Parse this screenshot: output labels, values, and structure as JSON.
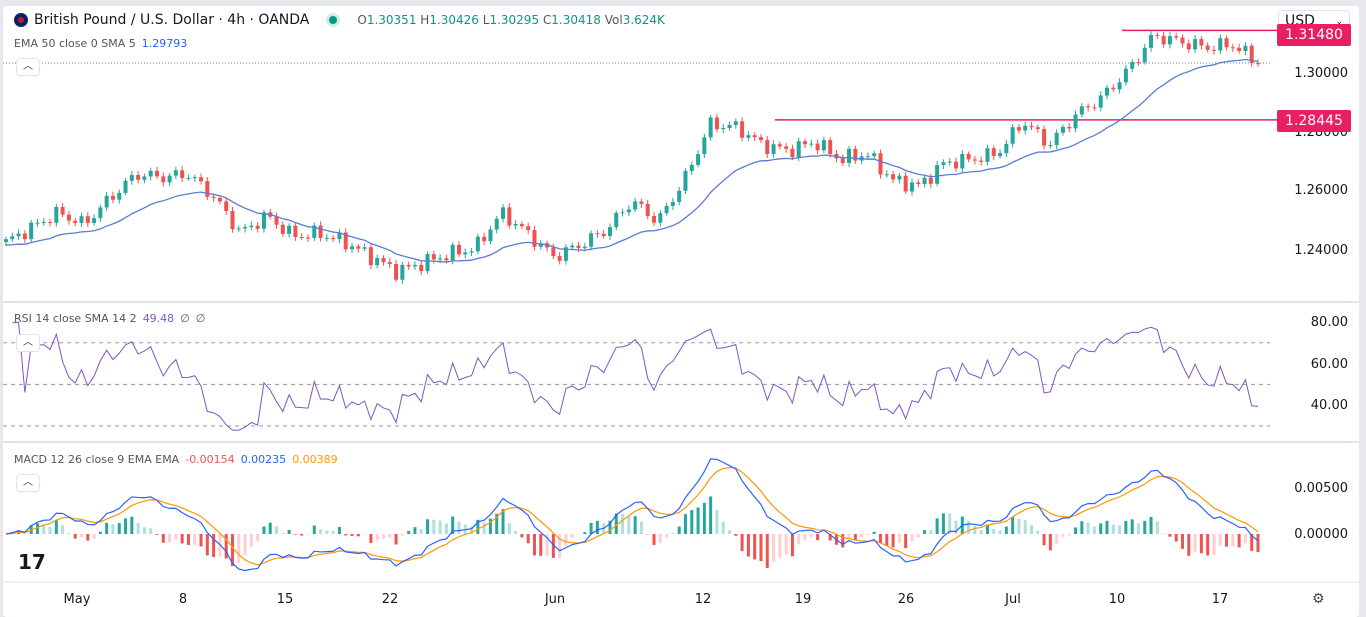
{
  "header": {
    "title": "British Pound / U.S. Dollar · 4h · OANDA",
    "open_label": "O",
    "open": "1.30351",
    "high_label": "H",
    "high": "1.30426",
    "low_label": "L",
    "low": "1.30295",
    "close_label": "C",
    "close": "1.30418",
    "vol_label": "Vol",
    "vol": "3.624K"
  },
  "ema": {
    "label": "EMA 50 close 0 SMA 5",
    "value": "1.29793"
  },
  "rsi": {
    "label": "RSI 14 close SMA 14 2",
    "value": "49.48",
    "extra1": "∅",
    "extra2": "∅"
  },
  "macd": {
    "label": "MACD 12 26 close 9 EMA EMA",
    "hist": "-0.00154",
    "macd": "0.00235",
    "signal": "0.00389"
  },
  "currency": "USD",
  "colors": {
    "up": "#26a69a",
    "down": "#ef5350",
    "ema": "#2962ff",
    "rsi": "#7e57c2",
    "macd": "#2962ff",
    "signal": "#ff9800",
    "level": "#e91e63"
  },
  "chart_data": [
    {
      "type": "candlestick",
      "title": "British Pound / U.S. Dollar · 4h · OANDA",
      "levels": [
        "1.31480",
        "1.28445"
      ],
      "price_ticks": [
        "1.30000",
        "1.28000",
        "1.26000",
        "1.24000"
      ],
      "close_path": [
        1.243,
        1.248,
        1.253,
        1.249,
        1.258,
        1.266,
        1.265,
        1.266,
        1.258,
        1.246,
        1.252,
        1.245,
        1.246,
        1.243,
        1.238,
        1.233,
        1.236,
        1.239,
        1.241,
        1.253,
        1.246,
        1.238,
        1.242,
        1.247,
        1.257,
        1.25,
        1.264,
        1.283,
        1.282,
        1.276,
        1.274,
        1.277,
        1.271,
        1.273,
        1.264,
        1.262,
        1.27,
        1.271,
        1.273,
        1.284,
        1.276,
        1.286,
        1.292,
        1.301,
        1.313,
        1.311,
        1.309,
        1.31,
        1.304
      ],
      "time_ticks": [
        "May",
        "8",
        "15",
        "22",
        "Jun",
        "12",
        "19",
        "26",
        "Jul",
        "10",
        "17"
      ]
    },
    {
      "type": "line",
      "title": "RSI",
      "ticks": [
        "80.00",
        "60.00",
        "40.00"
      ],
      "bands": [
        70,
        50,
        30
      ]
    },
    {
      "type": "bar+line",
      "title": "MACD",
      "ticks": [
        "0.00500",
        "0.00000"
      ]
    }
  ]
}
